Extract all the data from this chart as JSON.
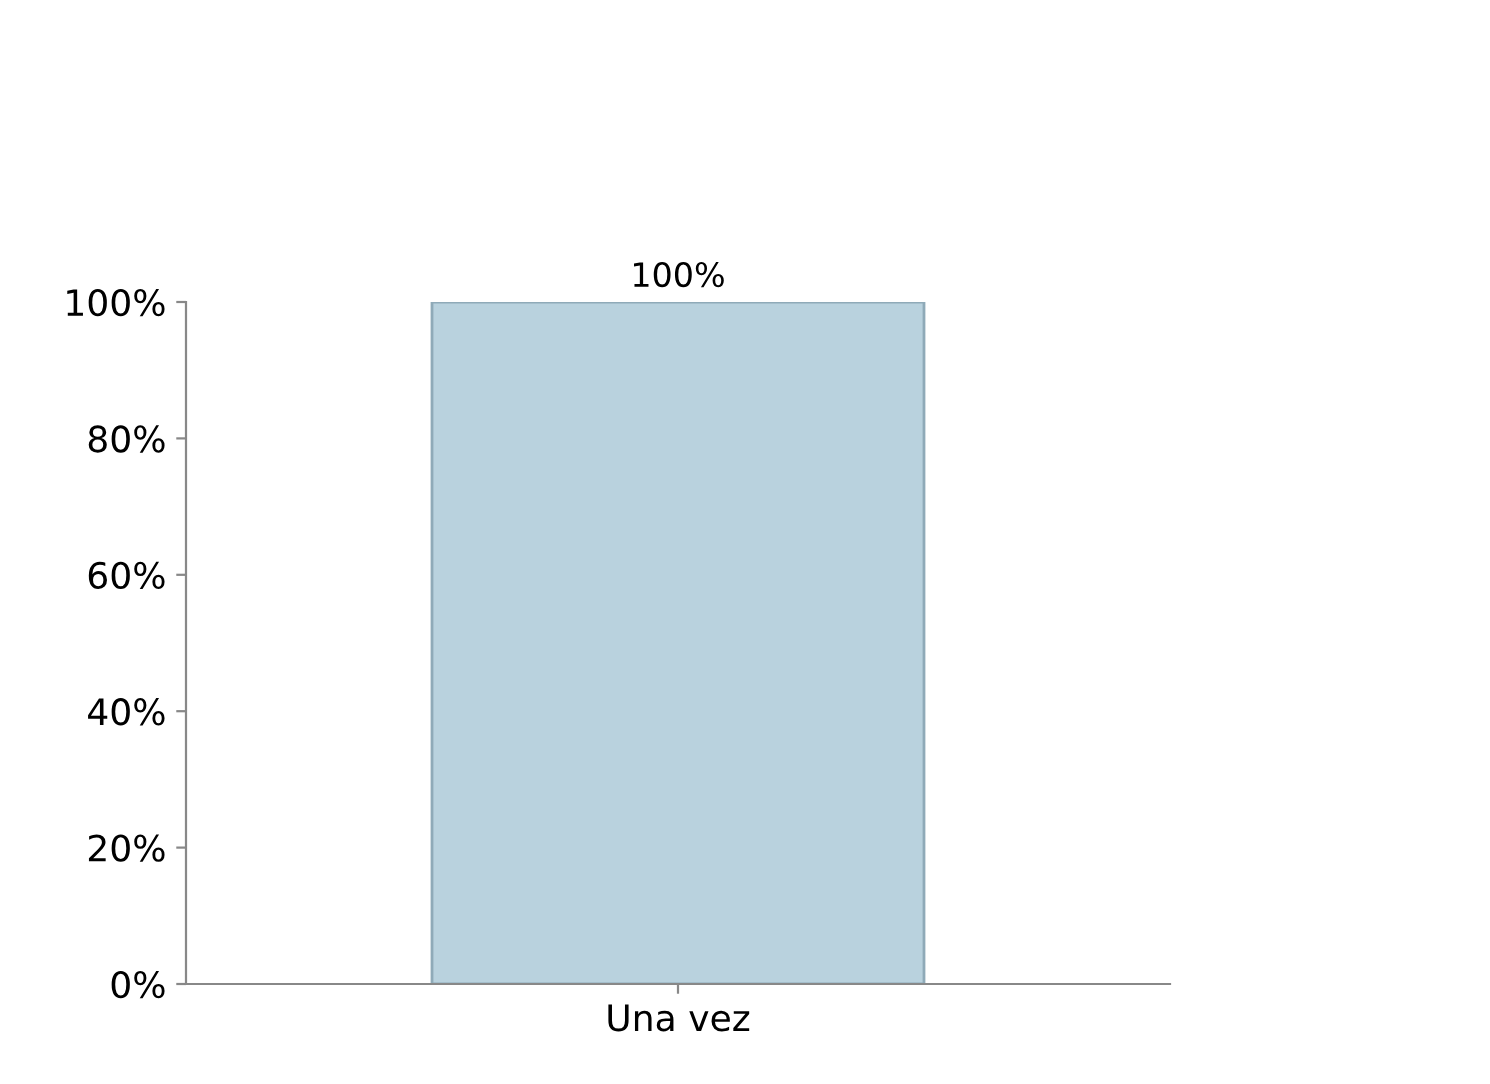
{
  "chart_data": {
    "type": "bar",
    "categories": [
      "Una vez"
    ],
    "values": [
      100
    ],
    "color": "#b9d2de",
    "value_labels": [
      "100%"
    ],
    "ylim": [
      0,
      100
    ],
    "yticks": [
      {
        "value": 0,
        "label": "0%"
      },
      {
        "value": 20,
        "label": "20%"
      },
      {
        "value": 40,
        "label": "40%"
      },
      {
        "value": 60,
        "label": "60%"
      },
      {
        "value": 80,
        "label": "80%"
      },
      {
        "value": 100,
        "label": "100%"
      }
    ],
    "grid": false,
    "legend": false
  }
}
